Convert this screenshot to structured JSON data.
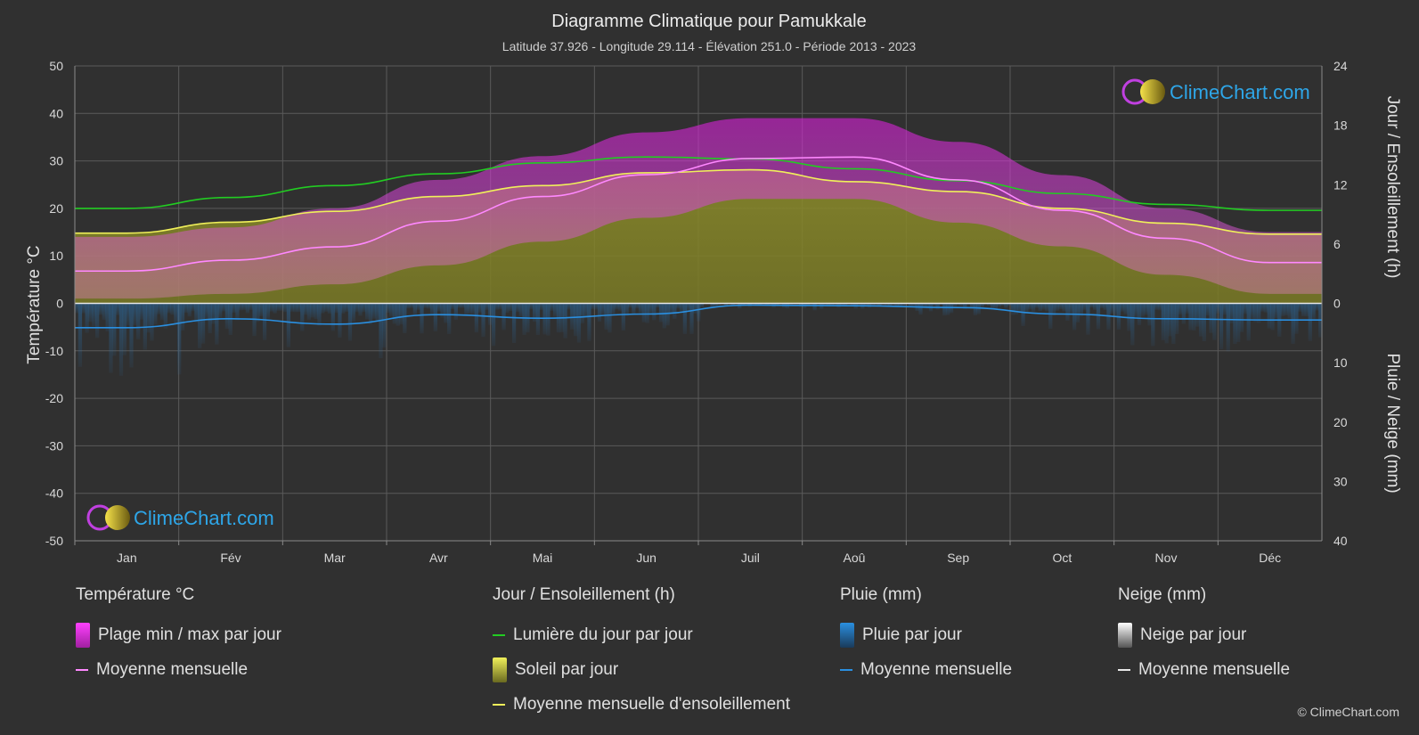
{
  "title": "Diagramme Climatique pour Pamukkale",
  "subtitle": "Latitude 37.926 - Longitude 29.114 - Élévation 251.0 - Période 2013 - 2023",
  "brand": "ClimeChart.com",
  "copyright": "© ClimeChart.com",
  "colors": {
    "background": "#303030",
    "grid": "#5a5a5a",
    "daylight": "#22cc22",
    "sunshine_fill": "#9a9a2e",
    "sunshine_mean": "#f0f05a",
    "temp_range": "#d030d0",
    "temp_mean": "#ff88ff",
    "rain": "#2a7bbf",
    "rain_mean": "#2a8fe0",
    "snow": "#cccccc",
    "brand_text": "#2ea6e8"
  },
  "legend": {
    "temperature": {
      "heading": "Température °C",
      "items": [
        {
          "label": "Plage min / max par jour",
          "swatch": "temp-range"
        },
        {
          "label": "Moyenne mensuelle",
          "swatch": "temp-mean"
        }
      ]
    },
    "sun": {
      "heading": "Jour / Ensoleillement (h)",
      "items": [
        {
          "label": "Lumière du jour par jour",
          "swatch": "daylight"
        },
        {
          "label": "Soleil par jour",
          "swatch": "sunshine"
        },
        {
          "label": "Moyenne mensuelle d'ensoleillement",
          "swatch": "sunshine-mean"
        }
      ]
    },
    "rain": {
      "heading": "Pluie (mm)",
      "items": [
        {
          "label": "Pluie par jour",
          "swatch": "rain"
        },
        {
          "label": "Moyenne mensuelle",
          "swatch": "rain-mean"
        }
      ]
    },
    "snow": {
      "heading": "Neige (mm)",
      "items": [
        {
          "label": "Neige par jour",
          "swatch": "snow"
        },
        {
          "label": "Moyenne mensuelle",
          "swatch": "snow-mean"
        }
      ]
    }
  },
  "chart_data": {
    "type": "line",
    "categories": [
      "Jan",
      "Fév",
      "Mar",
      "Avr",
      "Mai",
      "Jun",
      "Juil",
      "Aoû",
      "Sep",
      "Oct",
      "Nov",
      "Déc"
    ],
    "y_left": {
      "label": "Température °C",
      "range": [
        -50,
        50
      ],
      "ticks": [
        50,
        40,
        30,
        20,
        10,
        0,
        -10,
        -20,
        -30,
        -40,
        -50
      ]
    },
    "y_right_top": {
      "label": "Jour / Ensoleillement (h)",
      "range": [
        0,
        24
      ],
      "ticks": [
        24,
        18,
        12,
        6,
        0
      ]
    },
    "y_right_bottom": {
      "label": "Pluie / Neige (mm)",
      "range": [
        0,
        40
      ],
      "ticks": [
        0,
        10,
        20,
        30,
        40
      ]
    },
    "grid": true,
    "series": [
      {
        "name": "Lumière du jour par jour",
        "axis": "hours",
        "values": [
          9.6,
          10.7,
          11.9,
          13.1,
          14.2,
          14.8,
          14.6,
          13.6,
          12.4,
          11.1,
          10.0,
          9.4
        ]
      },
      {
        "name": "Moyenne mensuelle d'ensoleillement",
        "axis": "hours",
        "values": [
          7.1,
          8.2,
          9.3,
          10.8,
          11.9,
          13.2,
          13.5,
          12.3,
          11.3,
          9.6,
          8.1,
          7.0
        ]
      },
      {
        "name": "Moyenne mensuelle",
        "axis": "temperature",
        "values": [
          6.8,
          9.1,
          11.9,
          17.3,
          22.5,
          27.1,
          30.5,
          30.8,
          26.0,
          19.6,
          13.7,
          8.6
        ]
      },
      {
        "name": "Plage min / max par jour",
        "axis": "temperature",
        "type": "band",
        "min": [
          1,
          2,
          4,
          8,
          13,
          18,
          22,
          22,
          17,
          12,
          6,
          2
        ],
        "max": [
          14,
          16,
          20,
          26,
          31,
          36,
          39,
          39,
          34,
          27,
          20,
          15
        ]
      },
      {
        "name": "Pluie - Moyenne mensuelle",
        "axis": "precip",
        "values": [
          4.1,
          2.6,
          3.5,
          1.9,
          2.5,
          1.8,
          0.3,
          0.4,
          0.7,
          1.8,
          2.6,
          2.8
        ]
      },
      {
        "name": "Neige - Moyenne mensuelle",
        "axis": "precip",
        "values": [
          0,
          0,
          0,
          0,
          0,
          0,
          0,
          0,
          0,
          0,
          0,
          0
        ]
      }
    ]
  }
}
